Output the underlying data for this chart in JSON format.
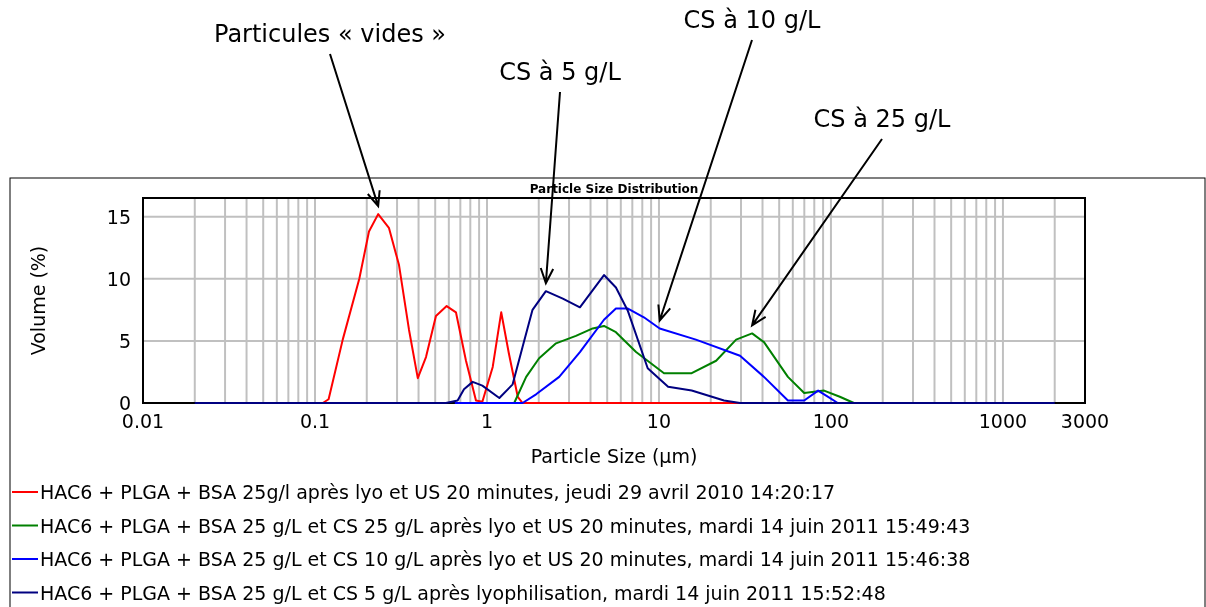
{
  "chart_data": {
    "type": "line",
    "title": "Particle Size Distribution",
    "xlabel": "Particle Size (µm)",
    "ylabel": "Volume (%)",
    "log": "x",
    "grid": true,
    "legend": "bottom",
    "marker": "none",
    "line_style": "solid",
    "xlim": [
      0.01,
      3000
    ],
    "xticks": [
      0.01,
      0.1,
      1,
      10,
      100,
      1000,
      3000
    ],
    "ylim": [
      0,
      16.5
    ],
    "yticks": [
      0,
      5,
      10,
      15
    ],
    "annotations": [
      {
        "text": "Particules « vides »",
        "x": 0.233,
        "y": 15.2
      },
      {
        "text": "CS à 5 g/L",
        "x": 2.2,
        "y": 9.0
      },
      {
        "text": "CS à 10 g/L",
        "x": 10.1,
        "y": 6.0
      },
      {
        "text": "CS à 25 g/L",
        "x": 34.8,
        "y": 5.6
      }
    ],
    "series": [
      {
        "name": "HAC6 + PLGA + BSA 25g/l après lyo et US 20 minutes, jeudi 29 avril 2010 14:20:17",
        "color": "#ff0000",
        "x": [
          0.111,
          0.12,
          0.145,
          0.181,
          0.206,
          0.233,
          0.269,
          0.308,
          0.352,
          0.396,
          0.442,
          0.505,
          0.583,
          0.66,
          0.755,
          0.863,
          0.94,
          1.08,
          1.21,
          1.34,
          1.51,
          1.61,
          30
        ],
        "values": [
          0,
          0.3,
          5.1,
          10,
          13.8,
          15.2,
          14.1,
          11.1,
          5.9,
          2.0,
          3.7,
          7.0,
          7.8,
          7.3,
          3.4,
          0.2,
          0.1,
          2.9,
          7.3,
          4.0,
          0.5,
          0,
          0
        ]
      },
      {
        "name": "HAC6 + PLGA + BSA 25 g/L et CS 25 g/L après lyo et US 20 minutes, mardi 14 juin 2011 15:49:43",
        "color": "#008000",
        "x": [
          1.44,
          1.69,
          2.01,
          2.52,
          3.29,
          4.12,
          4.79,
          5.62,
          7.36,
          10.7,
          15.5,
          21.5,
          28.1,
          34.8,
          40.8,
          56.2,
          69.9,
          91.2,
          112.6,
          136
        ],
        "values": [
          0,
          2.1,
          3.6,
          4.8,
          5.4,
          6.0,
          6.2,
          5.7,
          4.1,
          2.4,
          2.4,
          3.4,
          5.1,
          5.6,
          4.9,
          2.1,
          0.8,
          1.0,
          0.5,
          0
        ]
      },
      {
        "name": "HAC6 + PLGA + BSA 25 g/L et CS 10 g/L après lyo et US 20 minutes, mardi 14 juin 2011 15:46:38",
        "color": "#0000ff",
        "x": [
          0.65,
          1.61,
          1.93,
          2.63,
          3.47,
          4.79,
          5.62,
          6.6,
          8.17,
          10.1,
          16.4,
          29.6,
          40.8,
          56.2,
          69.9,
          84.2,
          96.3,
          109.5
        ],
        "values": [
          0,
          0,
          0.7,
          2.1,
          4.1,
          6.7,
          7.6,
          7.6,
          6.9,
          6.0,
          5.1,
          3.8,
          2.1,
          0.2,
          0.2,
          1.0,
          0.5,
          0
        ]
      },
      {
        "name": "HAC6 + PLGA + BSA 25 g/L et CS 5 g/L après lyophilisation, mardi 14 juin 2011 15:52:48",
        "color": "#000080",
        "x": [
          0.02,
          0.577,
          0.675,
          0.735,
          0.826,
          0.94,
          1.18,
          1.41,
          1.61,
          1.84,
          2.2,
          2.76,
          3.47,
          4.79,
          5.62,
          6.6,
          8.6,
          11.3,
          15.5,
          23.9,
          29.6,
          2000
        ],
        "values": [
          0,
          0,
          0.2,
          1.1,
          1.7,
          1.4,
          0.4,
          1.5,
          4.5,
          7.5,
          9.0,
          8.4,
          7.7,
          10.3,
          9.3,
          7.4,
          2.8,
          1.3,
          1.0,
          0.2,
          0,
          0
        ]
      }
    ]
  }
}
